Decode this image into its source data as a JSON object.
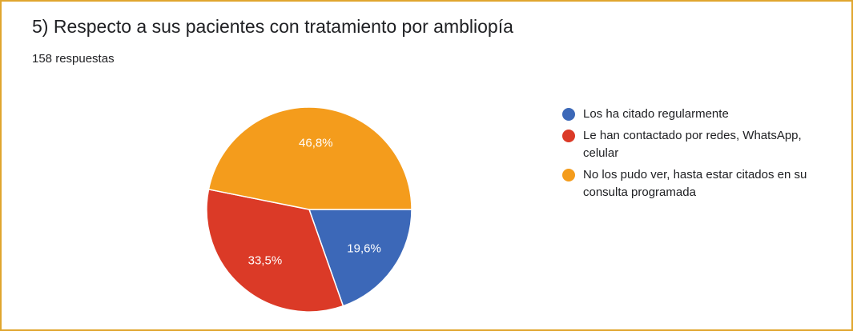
{
  "header": {
    "title": "5) Respecto a sus pacientes con tratamiento por ambliopía",
    "responses": "158 respuestas"
  },
  "colors": {
    "frame_border": "#e0a62e",
    "blue": "#3c68b8",
    "red": "#db3a27",
    "orange": "#f49c1c"
  },
  "chart_data": {
    "type": "pie",
    "title": "5) Respecto a sus pacientes con tratamiento por ambliopía",
    "subtitle": "158 respuestas",
    "legend_position": "right",
    "slices": [
      {
        "label": "Los ha citado regularmente",
        "value": 19.6,
        "display": "19,6%",
        "color": "#3c68b8"
      },
      {
        "label": "Le han contactado por redes, WhatsApp, celular",
        "value": 33.5,
        "display": "33,5%",
        "color": "#db3a27"
      },
      {
        "label": "No los pudo ver, hasta estar citados en su consulta programada",
        "value": 46.8,
        "display": "46,8%",
        "color": "#f49c1c"
      }
    ]
  }
}
